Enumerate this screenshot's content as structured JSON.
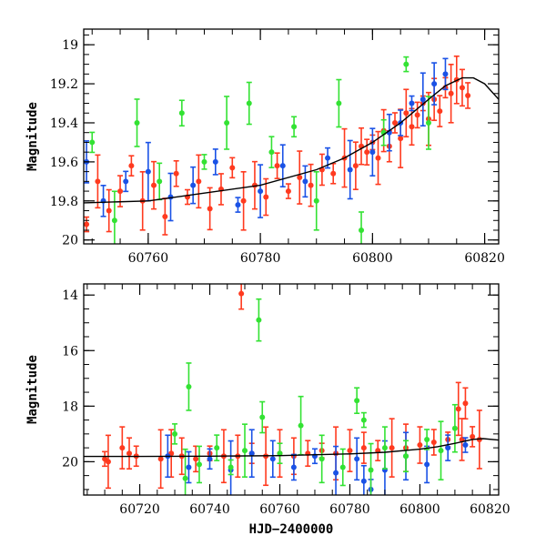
{
  "chart_data": [
    {
      "panel": "top",
      "type": "scatter",
      "title": "",
      "xlabel": "",
      "ylabel": "Magnitude",
      "xlim": [
        60748.5,
        60822.5
      ],
      "ylim": [
        20.02,
        18.92
      ],
      "y_inverted": true,
      "xticks": [
        60760,
        60780,
        60800,
        60820
      ],
      "yticks": [
        19,
        19.2,
        19.4,
        19.6,
        19.8,
        20
      ],
      "ytick_labels": [
        "19",
        "19.2",
        "19.4",
        "19.6",
        "19.8",
        "20"
      ],
      "legend": "none",
      "grid": false,
      "series": [
        {
          "color": "#ff3a1f",
          "data_description": "red band photometry",
          "x": [
            60749,
            60751,
            60753,
            60755,
            60757,
            60759,
            60761,
            60763,
            60765,
            60767,
            60769,
            60771,
            60773,
            60775,
            60777,
            60779,
            60781,
            60783,
            60785,
            60787,
            60789,
            60791,
            60793,
            60795,
            60797,
            60798,
            60799,
            60800,
            60801,
            60802,
            60803,
            60804,
            60805,
            60806,
            60807,
            60808,
            60809,
            60810,
            60811,
            60812,
            60813,
            60814,
            60815,
            60816,
            60817
          ],
          "y": [
            19.92,
            19.7,
            19.85,
            19.75,
            19.62,
            19.8,
            19.72,
            19.88,
            19.66,
            19.78,
            19.7,
            19.84,
            19.74,
            19.63,
            19.8,
            19.72,
            19.78,
            19.62,
            19.75,
            19.68,
            19.72,
            19.64,
            19.66,
            19.58,
            19.62,
            19.52,
            19.55,
            19.5,
            19.58,
            19.44,
            19.52,
            19.4,
            19.48,
            19.35,
            19.42,
            19.36,
            19.3,
            19.38,
            19.28,
            19.34,
            19.22,
            19.25,
            19.18,
            19.22,
            19.26
          ]
        },
        {
          "color": "#1a52e6",
          "data_description": "blue band photometry",
          "x": [
            60749,
            60752,
            60756,
            60760,
            60764,
            60768,
            60772,
            60776,
            60780,
            60784,
            60788,
            60792,
            60796,
            60800,
            60803,
            60805,
            60807,
            60809,
            60811,
            60813
          ],
          "y": [
            19.6,
            19.8,
            19.7,
            19.65,
            19.78,
            19.72,
            19.6,
            19.82,
            19.75,
            19.62,
            19.7,
            19.58,
            19.64,
            19.55,
            19.45,
            19.4,
            19.3,
            19.28,
            19.2,
            19.15
          ]
        },
        {
          "color": "#33e233",
          "data_description": "green band photometry",
          "x": [
            60750,
            60754,
            60758,
            60762,
            60766,
            60770,
            60774,
            60778,
            60782,
            60786,
            60790,
            60794,
            60798,
            60802,
            60806,
            60810
          ],
          "y": [
            19.5,
            19.9,
            19.4,
            19.7,
            19.35,
            19.6,
            19.4,
            19.3,
            19.55,
            19.42,
            19.8,
            19.3,
            19.95,
            19.45,
            19.1,
            19.4
          ]
        }
      ],
      "model_curve": {
        "color": "#000000",
        "x": [
          60748.5,
          60760,
          60770,
          60780,
          60790,
          60795,
          60800,
          60805,
          60810,
          60813,
          60816,
          60818,
          60820,
          60822.5
        ],
        "y": [
          19.81,
          19.8,
          19.76,
          19.72,
          19.64,
          19.58,
          19.5,
          19.4,
          19.28,
          19.21,
          19.17,
          19.17,
          19.2,
          19.28
        ]
      }
    },
    {
      "panel": "bottom",
      "type": "scatter",
      "title": "",
      "xlabel": "HJD−2400000",
      "ylabel": "Magnitude",
      "xlim": [
        60704,
        60822.5
      ],
      "ylim": [
        21.2,
        13.6
      ],
      "y_inverted": true,
      "xticks": [
        60720,
        60740,
        60760,
        60780,
        60800,
        60820
      ],
      "yticks": [
        14,
        16,
        18,
        20
      ],
      "legend": "none",
      "grid": false,
      "series": [
        {
          "color": "#ff3a1f",
          "data_description": "red band photometry",
          "x": [
            60710,
            60711,
            60715,
            60717,
            60719,
            60726,
            60729,
            60732,
            60736,
            60740,
            60744,
            60748,
            60749,
            60752,
            60756,
            60760,
            60764,
            60768,
            60772,
            60776,
            60780,
            60784,
            60788,
            60792,
            60796,
            60800,
            60804,
            60808,
            60811,
            60812,
            60813,
            60815,
            60817
          ],
          "y": [
            19.9,
            20.0,
            19.5,
            19.7,
            19.8,
            19.9,
            19.7,
            19.8,
            19.9,
            19.7,
            19.8,
            19.8,
            13.95,
            19.7,
            19.8,
            19.7,
            19.8,
            19.7,
            19.6,
            19.7,
            19.6,
            19.5,
            19.6,
            19.5,
            19.5,
            19.4,
            19.3,
            19.2,
            18.1,
            19.2,
            17.9,
            19.1,
            19.2
          ]
        },
        {
          "color": "#1a52e6",
          "data_description": "blue band photometry",
          "x": [
            60728,
            60734,
            60740,
            60746,
            60752,
            60758,
            60764,
            60770,
            60776,
            60782,
            60784,
            60786,
            60790,
            60796,
            60802,
            60808,
            60813
          ],
          "y": [
            19.8,
            20.2,
            19.9,
            20.3,
            19.7,
            19.9,
            20.2,
            19.8,
            20.4,
            19.9,
            20.7,
            21.0,
            20.3,
            19.8,
            20.1,
            19.5,
            19.4
          ]
        },
        {
          "color": "#33e233",
          "data_description": "green band photometry",
          "x": [
            60730,
            60733,
            60734,
            60737,
            60742,
            60746,
            60750,
            60754,
            60755,
            60760,
            60766,
            60772,
            60778,
            60782,
            60784,
            60786,
            60790,
            60796,
            60802,
            60806,
            60810
          ],
          "y": [
            19.0,
            20.6,
            17.3,
            20.1,
            19.5,
            20.2,
            19.6,
            14.9,
            18.4,
            19.7,
            18.7,
            19.9,
            20.2,
            17.8,
            18.5,
            20.3,
            19.5,
            19.8,
            19.2,
            19.6,
            18.8
          ]
        }
      ],
      "model_curve": {
        "color": "#000000",
        "x": [
          60704,
          60720,
          60740,
          60760,
          60780,
          60790,
          60800,
          60805,
          60810,
          60815,
          60818,
          60822.5
        ],
        "y": [
          19.81,
          19.81,
          19.8,
          19.78,
          19.72,
          19.66,
          19.55,
          19.46,
          19.34,
          19.2,
          19.17,
          19.22
        ]
      }
    }
  ]
}
